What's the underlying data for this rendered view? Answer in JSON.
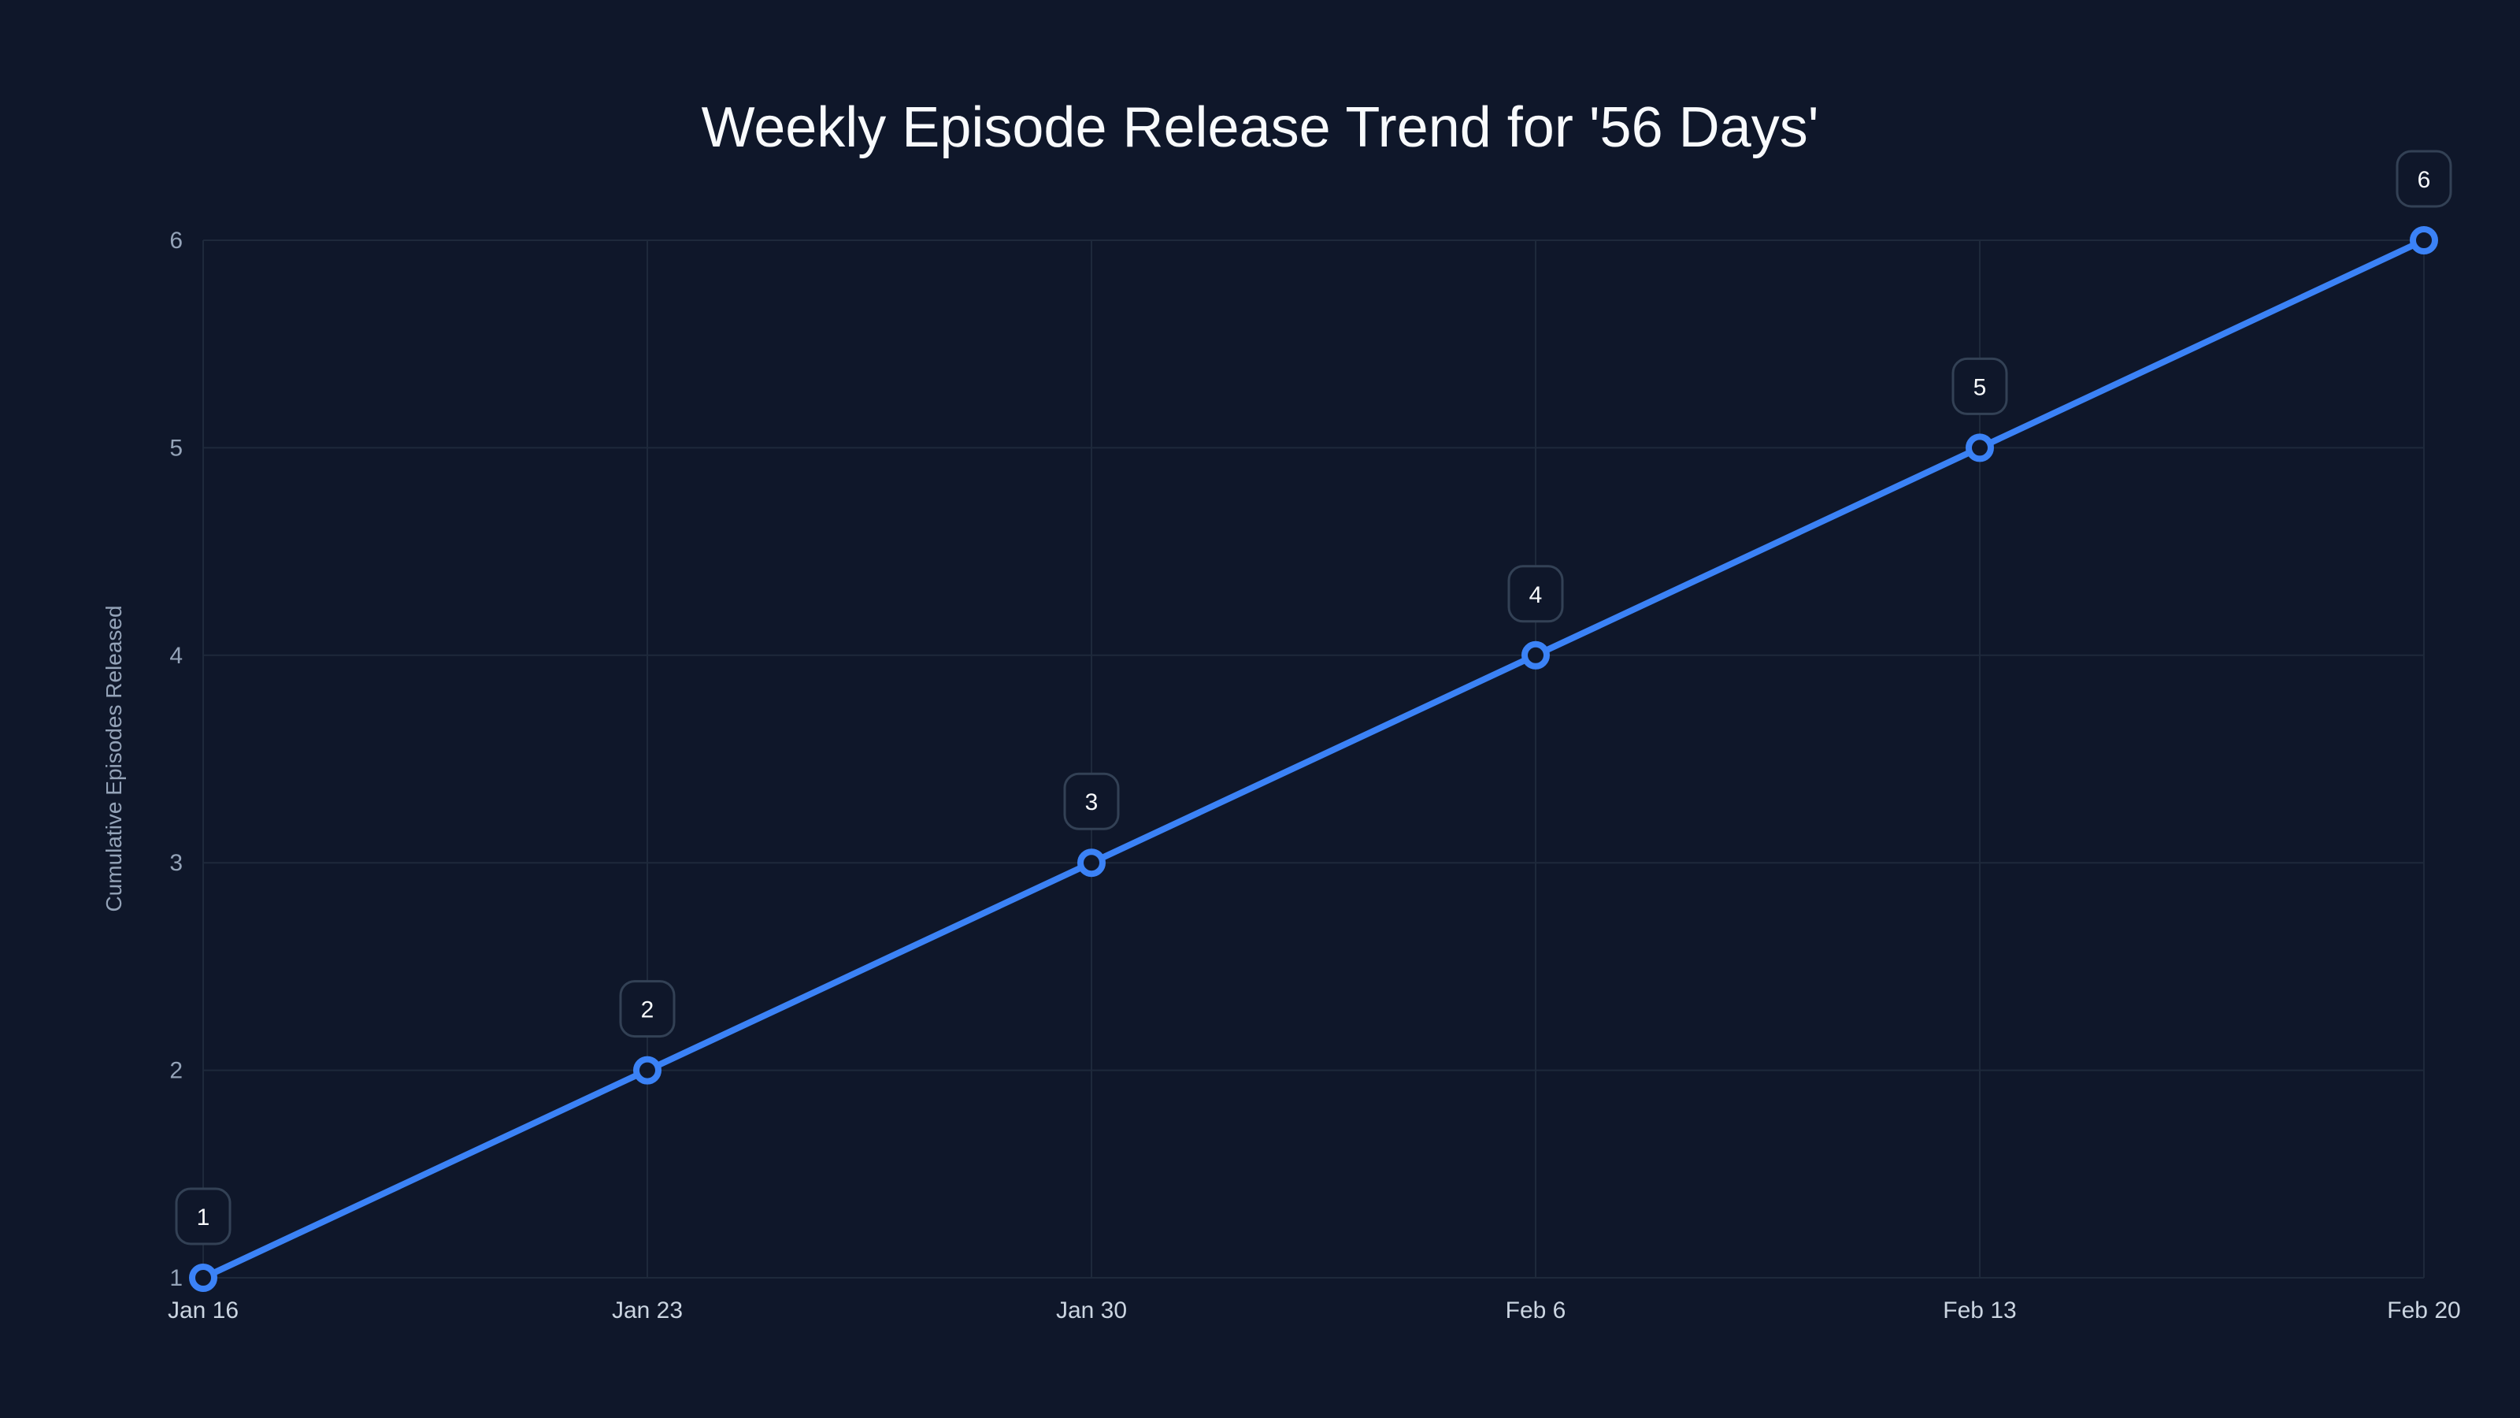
{
  "chart_data": {
    "type": "line",
    "title": "Weekly Episode Release Trend for '56 Days'",
    "xlabel": "",
    "ylabel": "Cumulative Episodes Released",
    "categories": [
      "Jan 16",
      "Jan 23",
      "Jan 30",
      "Feb 6",
      "Feb 13",
      "Feb 20"
    ],
    "series": [
      {
        "name": "Cumulative Episodes Released",
        "values": [
          1,
          2,
          3,
          4,
          5,
          6
        ],
        "color": "#3b82f6"
      }
    ],
    "yticks": [
      "1",
      "2",
      "3",
      "4",
      "5",
      "6"
    ],
    "ylim": [
      1,
      6
    ],
    "grid": true,
    "legend": "none",
    "data_labels": [
      "1",
      "2",
      "3",
      "4",
      "5",
      "6"
    ]
  },
  "colors": {
    "background": "#0f172a",
    "line": "#3b82f6",
    "grid": "#1e293b",
    "label_border": "#334155"
  }
}
